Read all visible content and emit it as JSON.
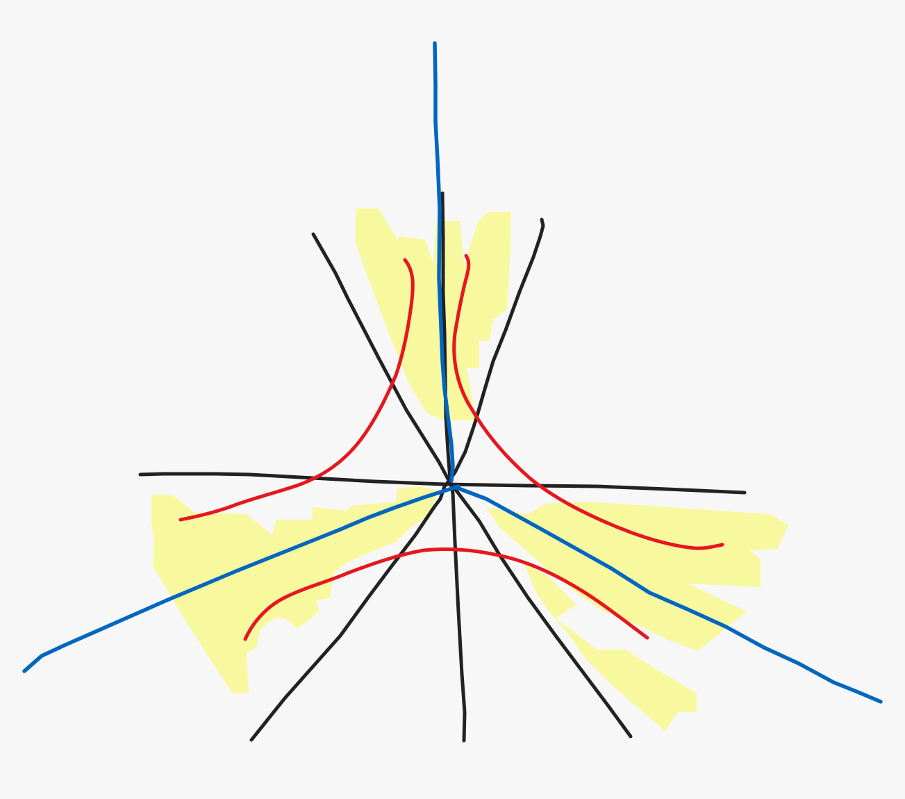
{
  "drawing": {
    "background": "#f7f7f7",
    "colors": {
      "highlight": "#f8f88f",
      "black": "#222222",
      "blue": "#0066c0",
      "red": "#e5171f"
    },
    "highlights": [
      {
        "name": "upper-left-highlight"
      },
      {
        "name": "upper-right-highlight"
      },
      {
        "name": "lower-left-highlight"
      },
      {
        "name": "lower-right-highlight"
      }
    ],
    "black_lines": [
      {
        "name": "horizontal-line"
      },
      {
        "name": "diagonal-line-upper-left-to-lower-right"
      },
      {
        "name": "diagonal-line-upper-right-to-lower-left"
      },
      {
        "name": "vertical-line"
      }
    ],
    "blue_lines": [
      {
        "name": "blue-asymptote-vertical"
      },
      {
        "name": "blue-asymptote-left"
      },
      {
        "name": "blue-asymptote-right"
      }
    ],
    "red_curves": [
      {
        "name": "red-curve-left-upper"
      },
      {
        "name": "red-curve-right-upper"
      },
      {
        "name": "red-curve-bottom"
      }
    ]
  }
}
